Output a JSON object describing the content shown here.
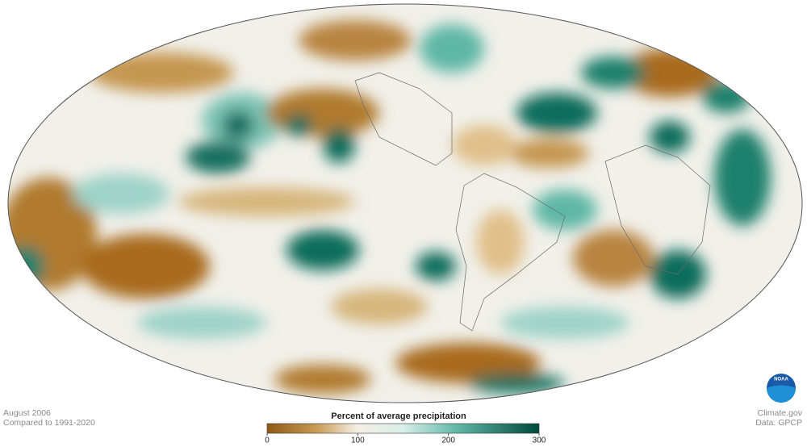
{
  "map": {
    "date": "August 2006",
    "baseline": "Compared to 1991-2020",
    "credit": "Climate.gov",
    "source": "Data: GPCP",
    "logo": "NOAA"
  },
  "legend": {
    "title": "Percent of average precipitation",
    "range": [
      0,
      300
    ],
    "ticks": [
      0,
      100,
      200,
      300
    ]
  }
}
